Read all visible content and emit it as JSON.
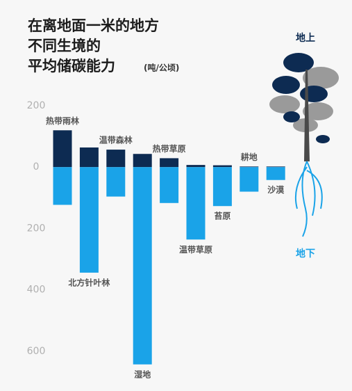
{
  "chart_data": {
    "type": "bar",
    "title": [
      "在离地面一米的地方",
      "不同生境的",
      "平均储碳能力"
    ],
    "unit": "(吨/公顷)",
    "categories": [
      "热带雨林",
      "北方针叶林",
      "温带森林",
      "湿地",
      "热带草原",
      "温带草原",
      "苔原",
      "耕地",
      "沙漠"
    ],
    "series": [
      {
        "name": "地上",
        "color": "#0d2b52",
        "values": [
          120,
          64,
          57,
          43,
          29,
          7,
          6,
          2,
          2
        ]
      },
      {
        "name": "地下",
        "color": "#1aa3e8",
        "values": [
          -123,
          -344,
          -96,
          -643,
          -117,
          -236,
          -127,
          -80,
          -42
        ]
      }
    ],
    "ylim": [
      -700,
      230
    ],
    "yticks": [
      200,
      0,
      {
        "value": -200,
        "label": "200"
      },
      {
        "value": -400,
        "label": "400"
      },
      {
        "value": -600,
        "label": "600"
      }
    ]
  }
}
